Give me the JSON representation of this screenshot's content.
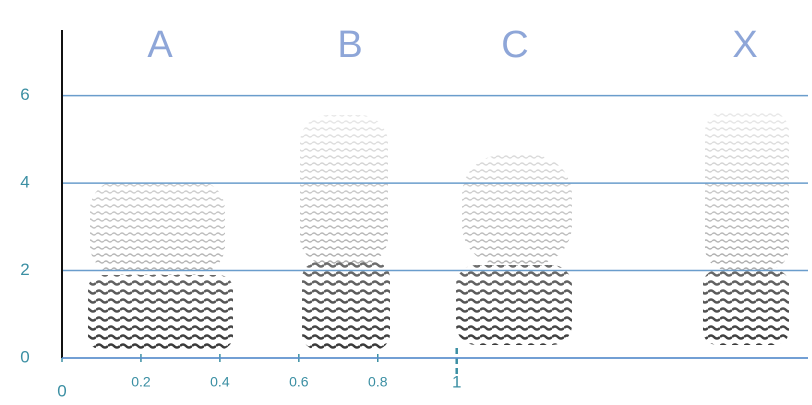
{
  "chart_data": {
    "type": "spectrogram",
    "annotations": [
      "A",
      "B",
      "C",
      "X"
    ],
    "xlim": [
      0,
      1.89
    ],
    "xticks": [
      0,
      0.2,
      0.4,
      0.6,
      0.8,
      1
    ],
    "ylim": [
      0,
      7.5
    ],
    "yticks": [
      0,
      2,
      4,
      6
    ],
    "grid": true,
    "color": "#6a9dcc"
  }
}
